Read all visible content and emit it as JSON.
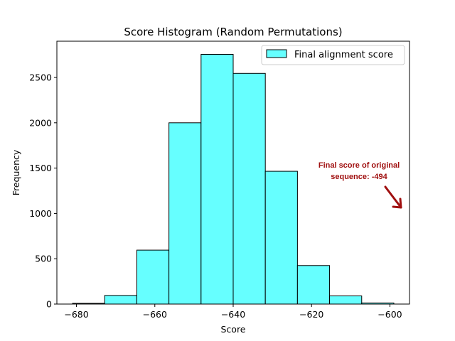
{
  "chart_data": {
    "type": "bar",
    "title": "Score Histogram (Random Permutations)",
    "xlabel": "Score",
    "ylabel": "Frequency",
    "xlim": [
      -685,
      -595
    ],
    "ylim": [
      0,
      2900
    ],
    "xticks": [
      -680,
      -660,
      -640,
      -620,
      -600
    ],
    "xtick_labels": [
      "−680",
      "−660",
      "−640",
      "−620",
      "−600"
    ],
    "yticks": [
      0,
      500,
      1000,
      1500,
      2000,
      2500
    ],
    "ytick_labels": [
      "0",
      "500",
      "1000",
      "1500",
      "2000",
      "2500"
    ],
    "bin_edges": [
      -681,
      -672.8,
      -664.6,
      -656.4,
      -648.2,
      -640.0,
      -631.8,
      -623.6,
      -615.4,
      -607.2,
      -599.0
    ],
    "series": [
      {
        "name": "Final alignment score",
        "values": [
          8,
          95,
          595,
          2000,
          2755,
          2545,
          1465,
          425,
          90,
          12
        ],
        "color": "#66ffff",
        "edgecolor": "#000000"
      }
    ],
    "legend_position": "upper-right",
    "grid": false,
    "annotation": {
      "text_line1": "Final score of original",
      "text_line2": "sequence: -494",
      "color": "#a01010"
    }
  }
}
